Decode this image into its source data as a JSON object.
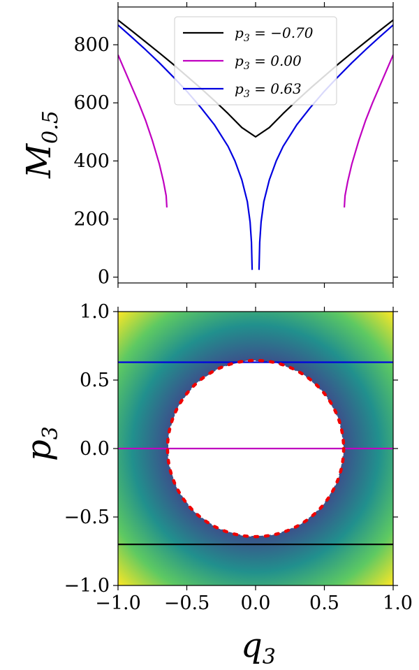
{
  "chart_data": [
    {
      "type": "line",
      "title": "",
      "xlabel": "",
      "ylabel": {
        "base": "M",
        "sub": "0.5"
      },
      "xlim": [
        -1.0,
        1.0
      ],
      "ylim": [
        -20,
        930
      ],
      "yticks": [
        0,
        200,
        400,
        600,
        800
      ],
      "ytick_labels": [
        "0",
        "200",
        "400",
        "600",
        "800"
      ],
      "xticks": [
        -1.0,
        -0.5,
        0.0,
        0.5,
        1.0
      ],
      "grid": false,
      "legend_position": "top-center",
      "series": [
        {
          "name": "p_3 = -0.70",
          "label_parts": {
            "var": "p",
            "sub": "3",
            "eq": " = ",
            "val": "−0.70"
          },
          "color": "#000000",
          "segments": [
            {
              "x": [
                -1.0,
                -0.9,
                -0.8,
                -0.7,
                -0.6,
                -0.5,
                -0.4,
                -0.3,
                -0.2,
                -0.1,
                0.0,
                0.1,
                0.2,
                0.3,
                0.4,
                0.5,
                0.6,
                0.7,
                0.8,
                0.9,
                1.0
              ],
              "y": [
                885,
                848,
                810,
                772,
                733,
                692,
                651,
                608,
                563,
                515,
                483,
                515,
                563,
                608,
                651,
                692,
                733,
                772,
                810,
                848,
                885
              ]
            }
          ]
        },
        {
          "name": "p_3 = 0.00",
          "label_parts": {
            "var": "p",
            "sub": "3",
            "eq": " = ",
            "val": "0.00"
          },
          "color": "#c000c0",
          "segments": [
            {
              "x": [
                -1.0,
                -0.95,
                -0.9,
                -0.85,
                -0.8,
                -0.75,
                -0.7,
                -0.67,
                -0.65,
                -0.645
              ],
              "y": [
                765,
                710,
                655,
                600,
                540,
                470,
                390,
                330,
                280,
                240
              ]
            },
            {
              "x": [
                0.645,
                0.65,
                0.67,
                0.7,
                0.75,
                0.8,
                0.85,
                0.9,
                0.95,
                1.0
              ],
              "y": [
                240,
                280,
                330,
                390,
                470,
                540,
                600,
                655,
                710,
                765
              ]
            }
          ]
        },
        {
          "name": "p_3 = 0.63",
          "label_parts": {
            "var": "p",
            "sub": "3",
            "eq": " = ",
            "val": "0.63"
          },
          "color": "#0000e0",
          "segments": [
            {
              "x": [
                -1.0,
                -0.9,
                -0.8,
                -0.7,
                -0.6,
                -0.5,
                -0.4,
                -0.3,
                -0.2,
                -0.15,
                -0.1,
                -0.06,
                -0.04,
                -0.03,
                -0.025
              ],
              "y": [
                868,
                826,
                783,
                738,
                690,
                640,
                585,
                525,
                450,
                400,
                335,
                260,
                190,
                120,
                25
              ]
            },
            {
              "x": [
                0.025,
                0.03,
                0.04,
                0.06,
                0.1,
                0.15,
                0.2,
                0.3,
                0.4,
                0.5,
                0.6,
                0.7,
                0.8,
                0.9,
                1.0
              ],
              "y": [
                25,
                120,
                190,
                260,
                335,
                400,
                450,
                525,
                585,
                640,
                690,
                738,
                783,
                826,
                868
              ]
            }
          ]
        }
      ]
    },
    {
      "type": "heatmap",
      "title": "",
      "xlabel": {
        "base": "q",
        "sub": "3"
      },
      "ylabel": {
        "base": "p",
        "sub": "3"
      },
      "xlim": [
        -1.0,
        1.0
      ],
      "ylim": [
        -1.0,
        1.0
      ],
      "xticks": [
        -1.0,
        -0.5,
        0.0,
        0.5,
        1.0
      ],
      "xtick_labels": [
        "−1.0",
        "−0.5",
        "0.0",
        "0.5",
        "1.0"
      ],
      "yticks": [
        -1.0,
        -0.5,
        0.0,
        0.5,
        1.0
      ],
      "ytick_labels": [
        "−1.0",
        "−0.5",
        "0.0",
        "0.5",
        "1.0"
      ],
      "colormap": "viridis",
      "colormap_stops": [
        "#3b528b",
        "#21908d",
        "#5ec962",
        "#fde725"
      ],
      "excluded_region": {
        "shape": "circle",
        "center": [
          0.0,
          0.0
        ],
        "radius": 0.64,
        "fill": "#ffffff"
      },
      "boundary_circle": {
        "center": [
          0.0,
          0.0
        ],
        "radius": 0.64,
        "color": "#ee0000",
        "style": "dotted"
      },
      "hlines": [
        {
          "y": 0.63,
          "color": "#0000e0"
        },
        {
          "y": 0.0,
          "color": "#c000c0"
        },
        {
          "y": -0.7,
          "color": "#000000"
        }
      ]
    }
  ]
}
